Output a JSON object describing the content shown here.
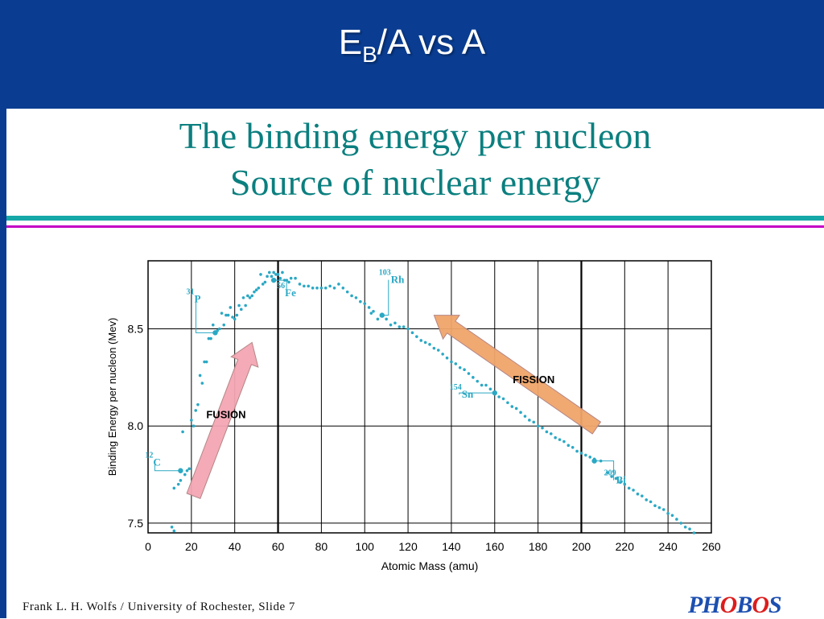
{
  "slide": {
    "title_main": "E",
    "title_sub": "B",
    "title_rest": "/A vs A",
    "subtitle_line1": "The binding energy per nucleon",
    "subtitle_line2": "Source of nuclear energy",
    "footer": "Frank L. H. Wolfs / University of Rochester, Slide 7",
    "logo_text": "PHOBOS"
  },
  "colors": {
    "header": "#0a3d91",
    "accent_teal": "#16a8a8",
    "accent_magenta": "#c400c4",
    "data_points": "#2aa8c4",
    "fusion_arrow": "#f4a6b4",
    "fission_arrow": "#f0a56a"
  },
  "chart_data": {
    "type": "scatter",
    "xlabel": "Atomic Mass (amu)",
    "ylabel": "Binding Energy per nucleon (Mev)",
    "xlim": [
      0,
      260
    ],
    "ylim": [
      7.45,
      8.85
    ],
    "xticks": [
      "0",
      "20",
      "40",
      "60",
      "80",
      "100",
      "120",
      "140",
      "160",
      "180",
      "200",
      "220",
      "240",
      "260"
    ],
    "yticks": [
      "7.5",
      "8.0",
      "8.5"
    ],
    "grid": true,
    "series": [
      {
        "points": [
          [
            11,
            7.48
          ],
          [
            12,
            7.46
          ],
          [
            12,
            7.68
          ],
          [
            14,
            7.7
          ],
          [
            15,
            7.72
          ],
          [
            16,
            7.97
          ],
          [
            17,
            7.75
          ],
          [
            18,
            7.77
          ],
          [
            19,
            7.78
          ],
          [
            20,
            8.03
          ],
          [
            21,
            8.0
          ],
          [
            22,
            8.08
          ],
          [
            23,
            8.11
          ],
          [
            24,
            8.26
          ],
          [
            25,
            8.22
          ],
          [
            26,
            8.33
          ],
          [
            27,
            8.33
          ],
          [
            28,
            8.45
          ],
          [
            29,
            8.45
          ],
          [
            30,
            8.52
          ],
          [
            31,
            8.48
          ],
          [
            32,
            8.49
          ],
          [
            33,
            8.5
          ],
          [
            34,
            8.58
          ],
          [
            35,
            8.52
          ],
          [
            36,
            8.57
          ],
          [
            37,
            8.57
          ],
          [
            38,
            8.61
          ],
          [
            39,
            8.56
          ],
          [
            40,
            8.55
          ],
          [
            41,
            8.57
          ],
          [
            42,
            8.62
          ],
          [
            43,
            8.6
          ],
          [
            44,
            8.66
          ],
          [
            45,
            8.62
          ],
          [
            46,
            8.67
          ],
          [
            47,
            8.66
          ],
          [
            48,
            8.67
          ],
          [
            49,
            8.69
          ],
          [
            50,
            8.7
          ],
          [
            51,
            8.71
          ],
          [
            52,
            8.78
          ],
          [
            53,
            8.73
          ],
          [
            54,
            8.74
          ],
          [
            55,
            8.77
          ],
          [
            56,
            8.79
          ],
          [
            57,
            8.77
          ],
          [
            58,
            8.79
          ],
          [
            59,
            8.78
          ],
          [
            60,
            8.78
          ],
          [
            61,
            8.76
          ],
          [
            62,
            8.79
          ],
          [
            63,
            8.75
          ],
          [
            64,
            8.75
          ],
          [
            65,
            8.74
          ],
          [
            66,
            8.76
          ],
          [
            68,
            8.76
          ],
          [
            70,
            8.73
          ],
          [
            72,
            8.72
          ],
          [
            74,
            8.72
          ],
          [
            76,
            8.71
          ],
          [
            78,
            8.71
          ],
          [
            80,
            8.71
          ],
          [
            82,
            8.71
          ],
          [
            84,
            8.72
          ],
          [
            86,
            8.71
          ],
          [
            88,
            8.73
          ],
          [
            90,
            8.71
          ],
          [
            92,
            8.69
          ],
          [
            94,
            8.67
          ],
          [
            96,
            8.66
          ],
          [
            98,
            8.64
          ],
          [
            100,
            8.63
          ],
          [
            102,
            8.61
          ],
          [
            103,
            8.58
          ],
          [
            104,
            8.59
          ],
          [
            106,
            8.55
          ],
          [
            108,
            8.57
          ],
          [
            110,
            8.55
          ],
          [
            112,
            8.52
          ],
          [
            114,
            8.53
          ],
          [
            116,
            8.51
          ],
          [
            118,
            8.51
          ],
          [
            120,
            8.5
          ],
          [
            122,
            8.48
          ],
          [
            124,
            8.46
          ],
          [
            126,
            8.44
          ],
          [
            128,
            8.43
          ],
          [
            130,
            8.42
          ],
          [
            132,
            8.4
          ],
          [
            134,
            8.39
          ],
          [
            136,
            8.37
          ],
          [
            138,
            8.35
          ],
          [
            140,
            8.33
          ],
          [
            142,
            8.32
          ],
          [
            144,
            8.3
          ],
          [
            146,
            8.29
          ],
          [
            148,
            8.27
          ],
          [
            150,
            8.25
          ],
          [
            152,
            8.23
          ],
          [
            154,
            8.21
          ],
          [
            156,
            8.21
          ],
          [
            158,
            8.19
          ],
          [
            160,
            8.17
          ],
          [
            162,
            8.15
          ],
          [
            164,
            8.14
          ],
          [
            166,
            8.12
          ],
          [
            168,
            8.1
          ],
          [
            170,
            8.09
          ],
          [
            172,
            8.07
          ],
          [
            174,
            8.05
          ],
          [
            176,
            8.03
          ],
          [
            178,
            8.02
          ],
          [
            180,
            8.0
          ],
          [
            182,
            7.99
          ],
          [
            184,
            7.97
          ],
          [
            186,
            7.96
          ],
          [
            188,
            7.94
          ],
          [
            190,
            7.93
          ],
          [
            192,
            7.92
          ],
          [
            194,
            7.9
          ],
          [
            196,
            7.89
          ],
          [
            198,
            7.87
          ],
          [
            200,
            7.86
          ],
          [
            202,
            7.85
          ],
          [
            204,
            7.84
          ],
          [
            206,
            7.83
          ],
          [
            209,
            7.82
          ],
          [
            212,
            7.76
          ],
          [
            214,
            7.74
          ],
          [
            216,
            7.73
          ],
          [
            218,
            7.71
          ],
          [
            220,
            7.7
          ],
          [
            222,
            7.68
          ],
          [
            224,
            7.67
          ],
          [
            226,
            7.65
          ],
          [
            228,
            7.64
          ],
          [
            230,
            7.62
          ],
          [
            232,
            7.61
          ],
          [
            234,
            7.59
          ],
          [
            236,
            7.58
          ],
          [
            238,
            7.57
          ],
          [
            240,
            7.55
          ],
          [
            242,
            7.54
          ],
          [
            244,
            7.52
          ],
          [
            246,
            7.5
          ],
          [
            248,
            7.48
          ],
          [
            250,
            7.47
          ],
          [
            252,
            7.45
          ]
        ]
      }
    ],
    "labeled_points": [
      {
        "mass": "12",
        "symbol": "C",
        "x": 15,
        "y": 7.77
      },
      {
        "mass": "31",
        "symbol": "P",
        "x": 31,
        "y": 8.48
      },
      {
        "mass": "56",
        "symbol": "Fe",
        "x": 58,
        "y": 8.75
      },
      {
        "mass": "103",
        "symbol": "Rh",
        "x": 108,
        "y": 8.57
      },
      {
        "mass": "154",
        "symbol": "Sn",
        "x": 160,
        "y": 8.17
      },
      {
        "mass": "209",
        "symbol": "Bi",
        "x": 206,
        "y": 7.82
      }
    ],
    "annotations": [
      {
        "text": "FUSION",
        "x": 36,
        "y": 8.04
      },
      {
        "text": "FISSION",
        "x": 178,
        "y": 8.22
      }
    ]
  }
}
